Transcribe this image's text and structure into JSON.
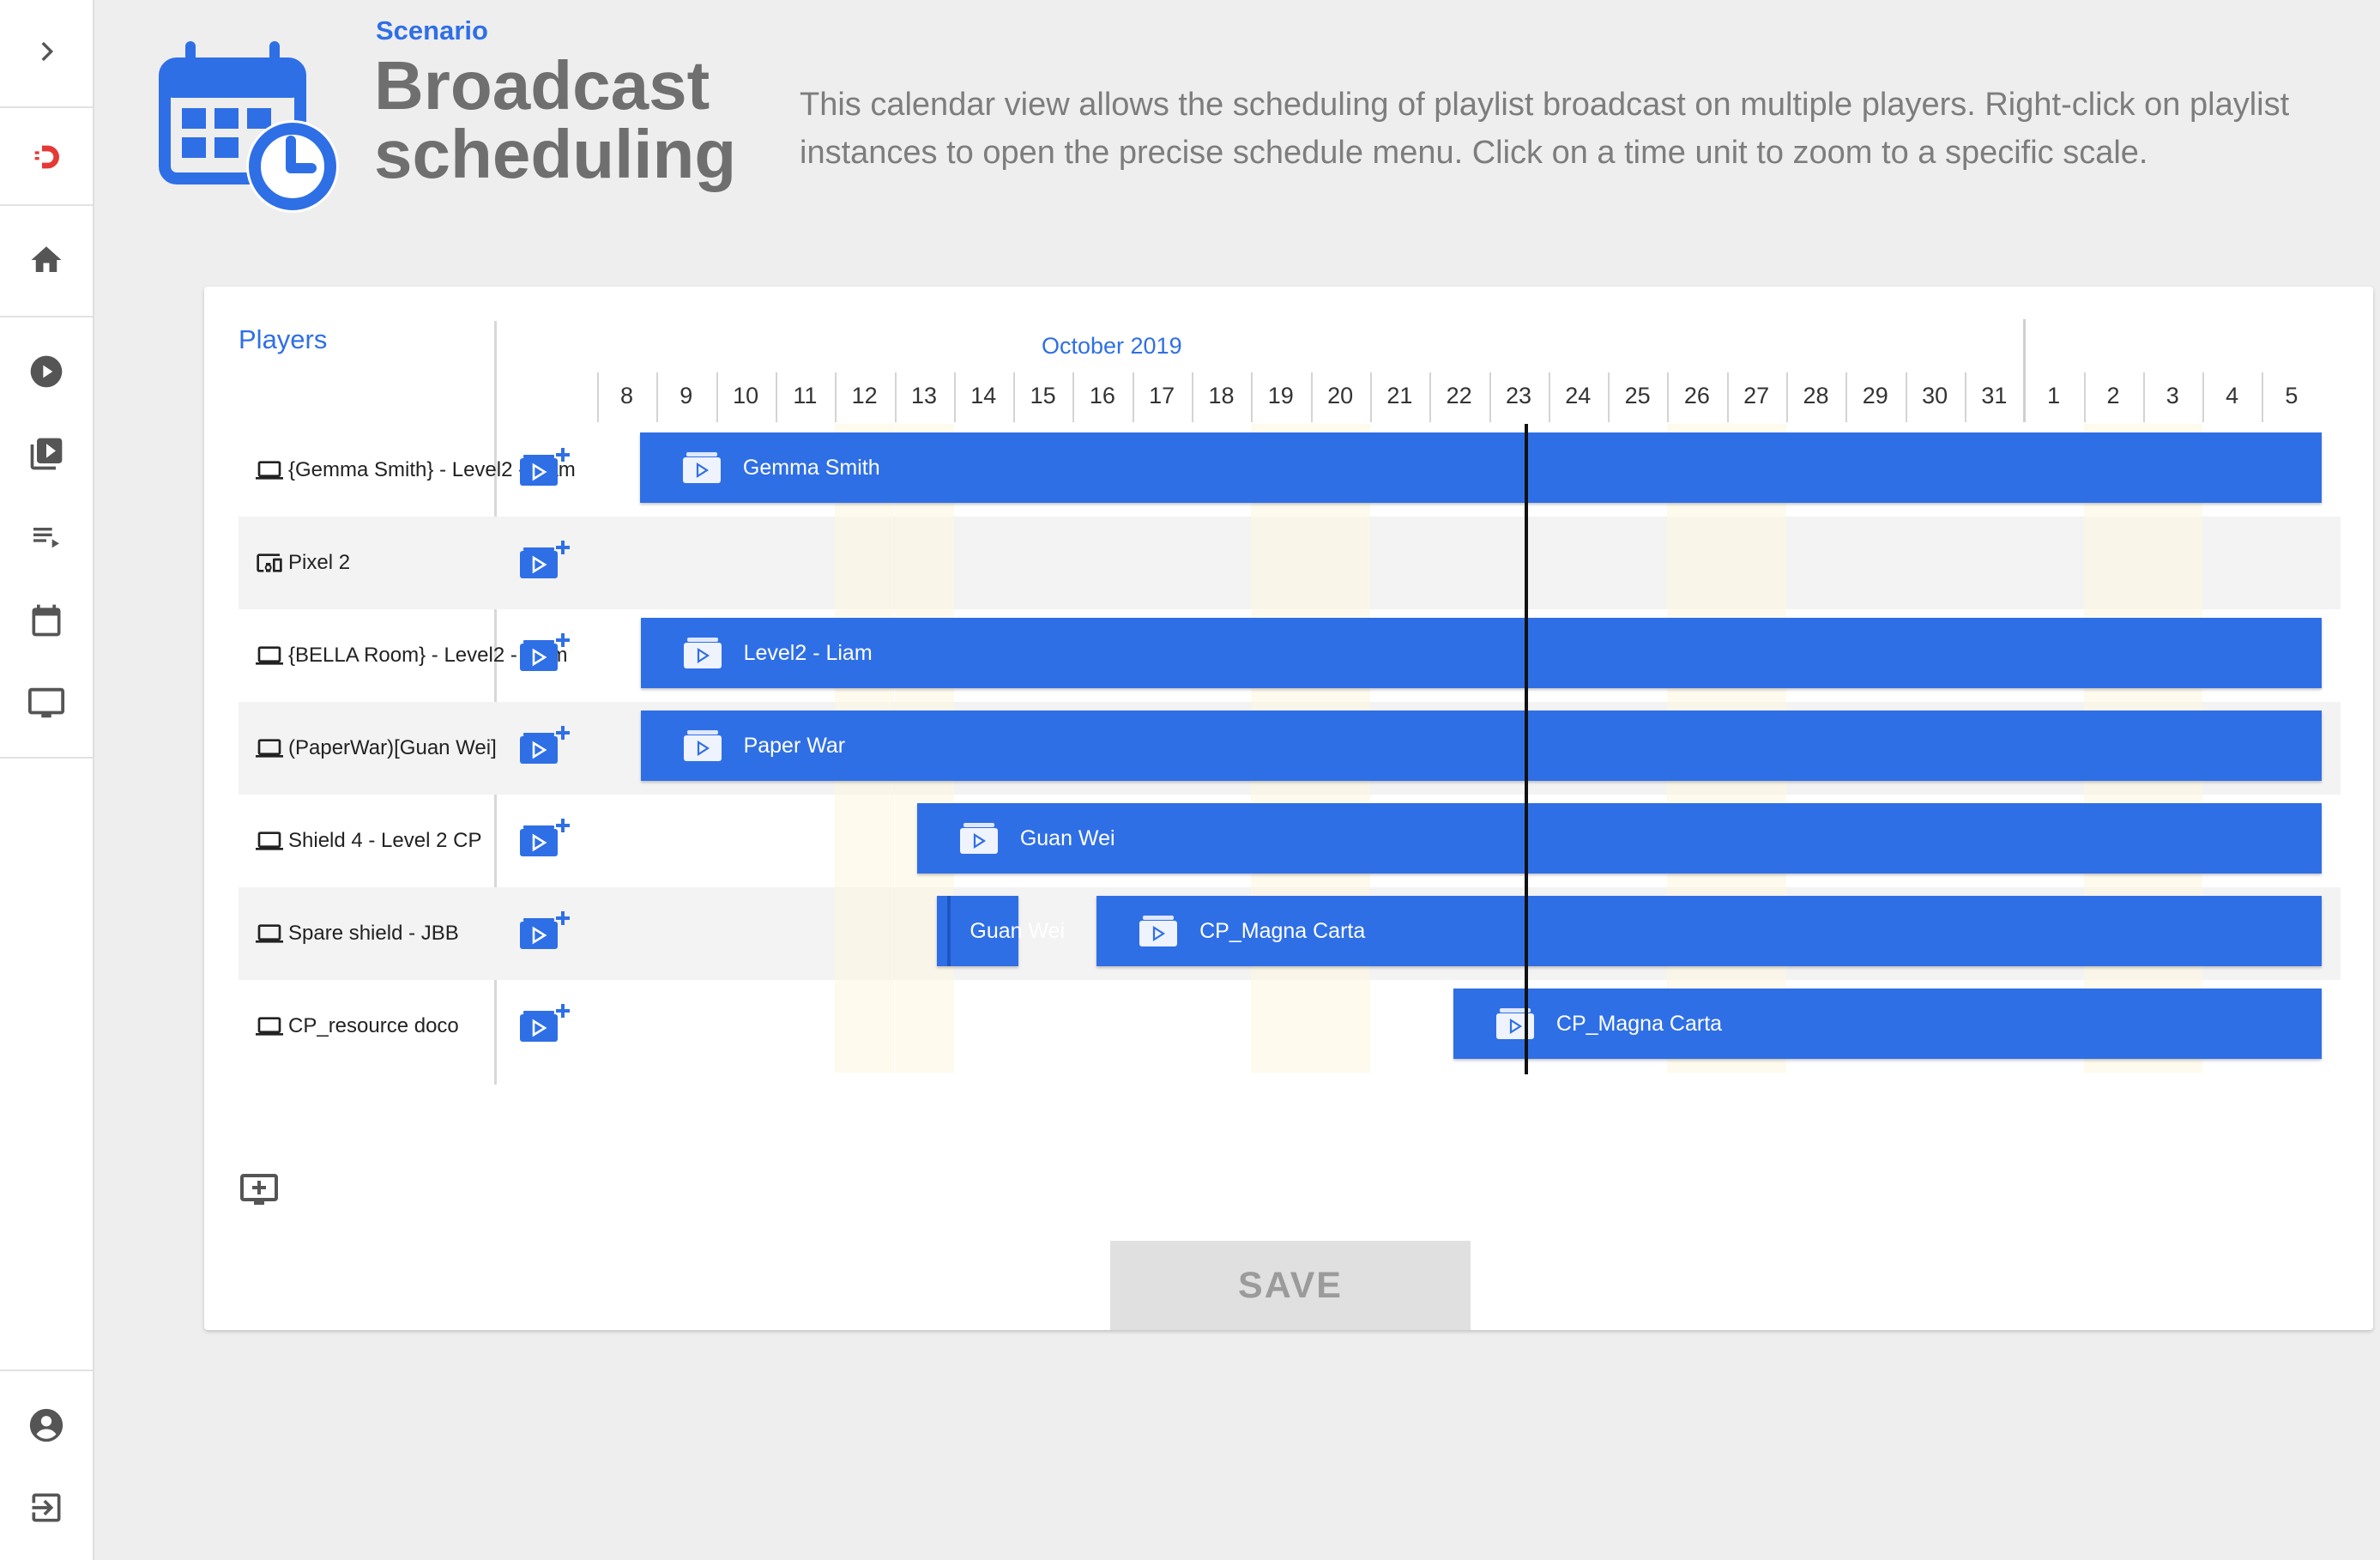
{
  "header": {
    "scenario_label": "Scenario",
    "title": "Broadcast scheduling",
    "description": "This calendar view allows the scheduling of playlist broadcast on multiple players. Right-click on playlist instances to open the precise schedule menu. Click on a time unit to zoom to a specific scale.",
    "icon": "calendar-clock-icon"
  },
  "sidebar": {
    "expand_icon": "chevron-right-icon",
    "items": [
      {
        "icon": "logo-icon"
      },
      {
        "icon": "home-icon"
      },
      {
        "icon": "play-circle-icon"
      },
      {
        "icon": "video-library-icon"
      },
      {
        "icon": "playlist-play-icon"
      },
      {
        "icon": "calendar-icon"
      },
      {
        "icon": "monitor-icon"
      }
    ],
    "bottom_items": [
      {
        "icon": "account-circle-icon"
      },
      {
        "icon": "logout-icon"
      }
    ]
  },
  "calendar": {
    "players_label": "Players",
    "month_label": "October 2019",
    "days": [
      "8",
      "9",
      "10",
      "11",
      "12",
      "13",
      "14",
      "15",
      "16",
      "17",
      "18",
      "19",
      "20",
      "21",
      "22",
      "23",
      "24",
      "25",
      "26",
      "27",
      "28",
      "29",
      "30",
      "31",
      "1",
      "2",
      "3",
      "4",
      "5"
    ],
    "players": [
      {
        "name": "{Gemma Smith} - Level2 - Liam",
        "device": "laptop-icon",
        "bars": [
          {
            "label": "Gemma Smith",
            "start_day_index": 0.72,
            "end_day_index": 29.0
          }
        ]
      },
      {
        "name": "Pixel 2",
        "device": "phone-tablet-icon",
        "bars": []
      },
      {
        "name": "{BELLA Room} - Level2 - Liam",
        "device": "laptop-icon",
        "bars": [
          {
            "label": "Level2 - Liam",
            "start_day_index": 0.73,
            "end_day_index": 29.0
          }
        ]
      },
      {
        "name": "(PaperWar)[Guan Wei]",
        "device": "laptop-icon",
        "bars": [
          {
            "label": "Paper War",
            "start_day_index": 0.73,
            "end_day_index": 29.0
          }
        ]
      },
      {
        "name": "Shield 4 - Level 2 CP",
        "device": "laptop-icon",
        "bars": [
          {
            "label": "Guan Wei",
            "start_day_index": 5.38,
            "end_day_index": 29.0
          }
        ]
      },
      {
        "name": "Spare shield - JBB",
        "device": "laptop-icon",
        "bars": [
          {
            "label": "Guan Wei",
            "start_day_index": 5.72,
            "end_day_index": 7.08,
            "small": true
          },
          {
            "label": "CP_Magna Carta",
            "start_day_index": 8.4,
            "end_day_index": 29.0
          }
        ]
      },
      {
        "name": "CP_resource doco",
        "device": "laptop-icon",
        "bars": [
          {
            "label": "CP_Magna Carta",
            "start_day_index": 14.4,
            "end_day_index": 29.0
          }
        ]
      }
    ],
    "weekend_day_indexes": [
      4,
      5,
      11,
      12,
      18,
      19,
      25,
      26
    ],
    "today_day_index": 15.6,
    "add_player_icon": "add-monitor-icon",
    "add_playlist_icon": "add-playlist-icon",
    "playlist_icon": "playlist-folder-icon"
  },
  "actions": {
    "save_label": "SAVE"
  },
  "colors": {
    "accent": "#2f6fe6",
    "bar": "#2f6fe6",
    "weekend": "#fdf6de",
    "row_shade": "#f3f3f3"
  }
}
